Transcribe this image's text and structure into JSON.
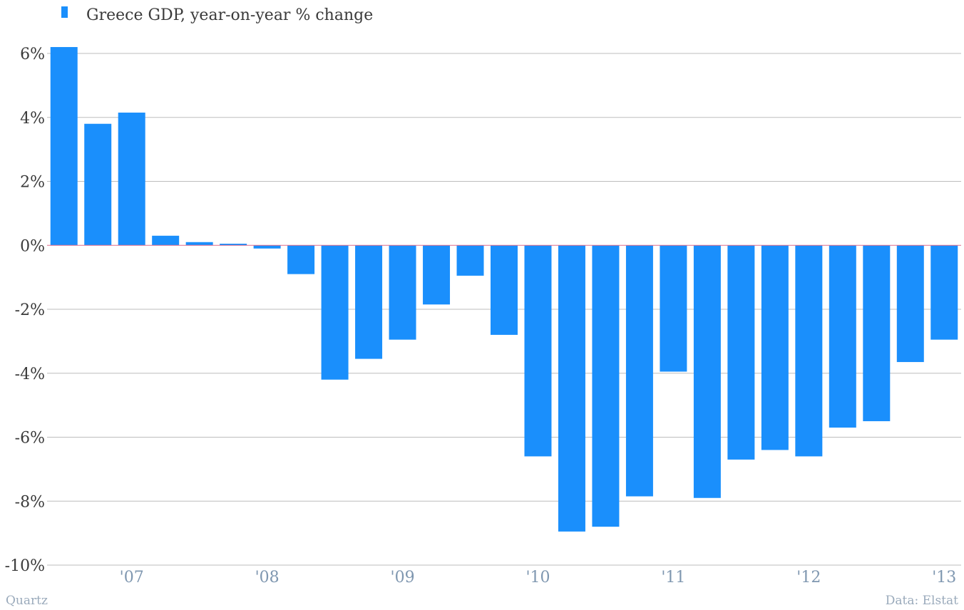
{
  "chart_data": {
    "type": "bar",
    "series": [
      {
        "name": "Greece GDP, year-on-year % change",
        "color": "#1a8ffc",
        "values": [
          6.2,
          3.8,
          4.15,
          0.3,
          0.1,
          0.05,
          -0.1,
          -0.9,
          -4.2,
          -3.55,
          -2.95,
          -1.85,
          -0.95,
          -2.8,
          -6.6,
          -8.95,
          -8.8,
          -7.85,
          -3.95,
          -7.9,
          -6.7,
          -6.4,
          -6.6,
          -5.7,
          -5.5,
          -3.65,
          -2.95
        ]
      }
    ],
    "x_tick_labels": [
      "'07",
      "'08",
      "'09",
      "'10",
      "'11",
      "'12",
      "'13"
    ],
    "x_tick_bar_index": [
      2,
      6,
      10,
      14,
      18,
      22,
      26
    ],
    "y_ticks": [
      6,
      4,
      2,
      0,
      -2,
      -4,
      -6,
      -8,
      -10
    ],
    "y_tick_labels": [
      "6%",
      "4%",
      "2%",
      "0%",
      "-2%",
      "-4%",
      "-6%",
      "-8%",
      "-10%"
    ],
    "ylim": [
      -10,
      6
    ],
    "grid": true,
    "legend_position": "top-left",
    "zero_line_color": "#e06b8a",
    "grid_color": "#bdbdbd"
  },
  "footer": {
    "source_left": "Quartz",
    "source_right": "Data: Elstat"
  }
}
